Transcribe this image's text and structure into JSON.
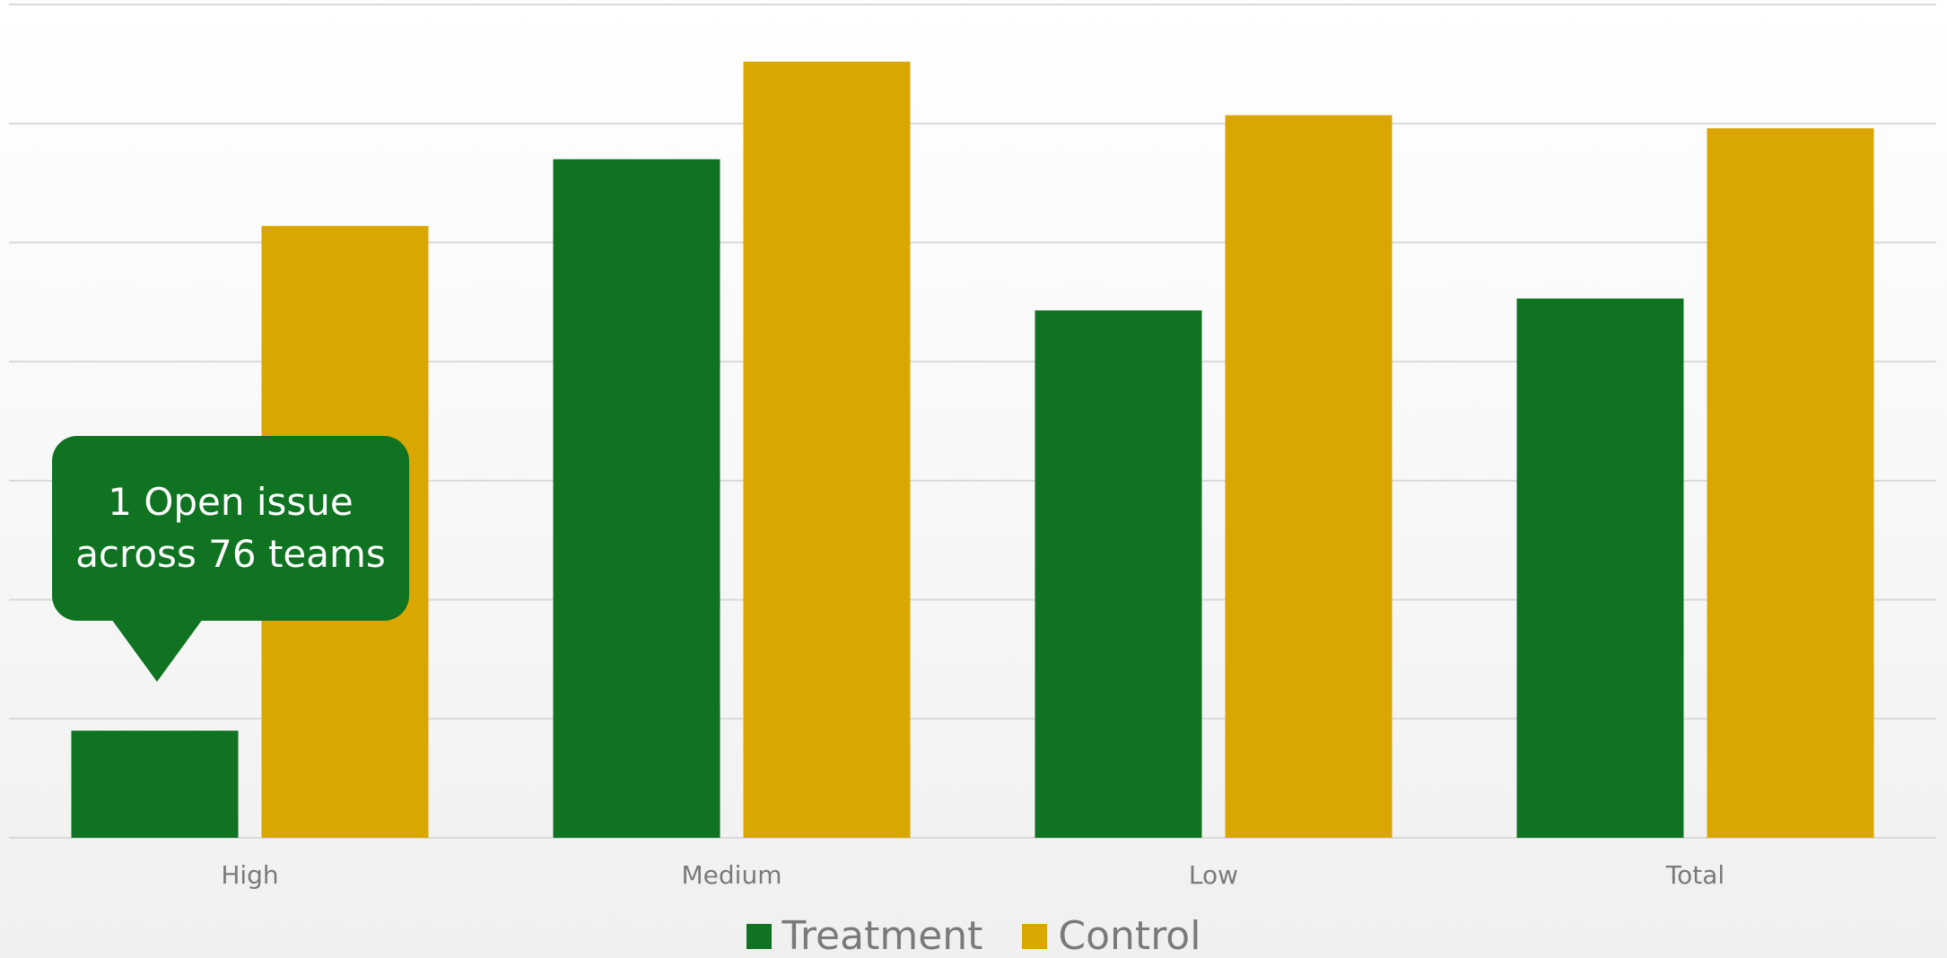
{
  "chart_data": {
    "type": "bar",
    "categories": [
      "High",
      "Medium",
      "Low",
      "Total"
    ],
    "series": [
      {
        "name": "Treatment",
        "color": "#0f7321",
        "values": [
          0.9,
          5.7,
          4.43,
          4.53
        ]
      },
      {
        "name": "Control",
        "color": "#d9a700",
        "values": [
          5.14,
          6.52,
          6.07,
          5.96
        ]
      }
    ],
    "ylim": [
      0,
      7
    ],
    "grid": true,
    "legend": "bottom-center",
    "title": "",
    "xlabel": "",
    "ylabel": ""
  },
  "callout": {
    "line1": "1 Open issue",
    "line2": "across 76 teams"
  }
}
